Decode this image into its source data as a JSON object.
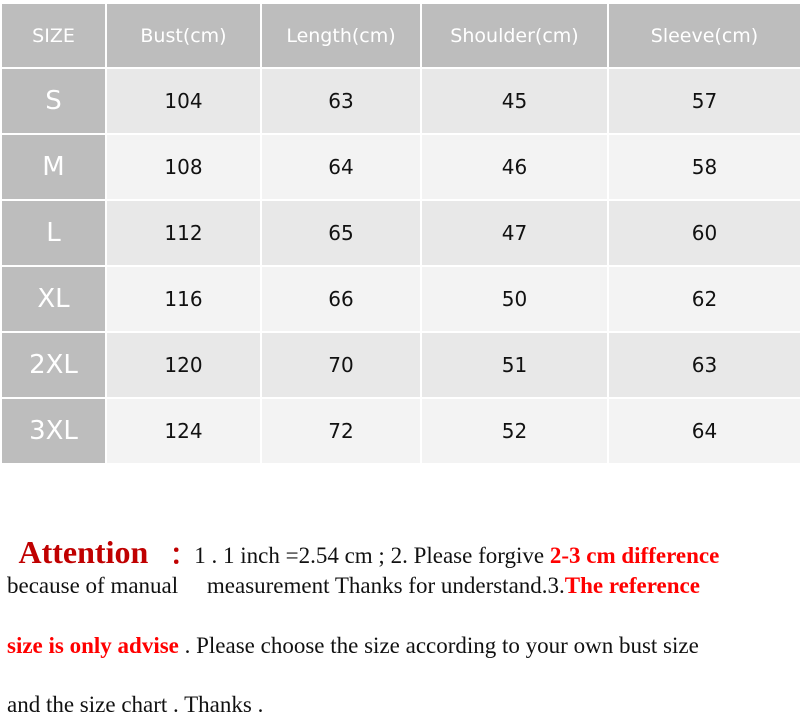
{
  "table": {
    "headers": [
      "SIZE",
      "Bust(cm)",
      "Length(cm)",
      "Shoulder(cm)",
      "Sleeve(cm)"
    ],
    "rows": [
      [
        "S",
        "104",
        "63",
        "45",
        "57"
      ],
      [
        "M",
        "108",
        "64",
        "46",
        "58"
      ],
      [
        "L",
        "112",
        "65",
        "47",
        "60"
      ],
      [
        "XL",
        "116",
        "66",
        "50",
        "62"
      ],
      [
        "2XL",
        "120",
        "70",
        "51",
        "63"
      ],
      [
        "3XL",
        "124",
        "72",
        "52",
        "64"
      ]
    ]
  },
  "note": {
    "attention": "Attention",
    "colon": "：",
    "l1a": "1 . 1 inch =2.54 cm ; 2. Please forgive ",
    "l1b": "2-3 cm difference",
    "l2a": "because of manual     measurement Thanks for understand.3.",
    "l2b": "The reference",
    "l3a": "size is only advise",
    "l3b": " . Please choose the size according to your own bust size",
    "l4": "and the size chart . Thanks ."
  },
  "colors": {
    "header_bg": "#bdbdbd",
    "attention": "#c00000",
    "highlight": "#ff0000"
  }
}
